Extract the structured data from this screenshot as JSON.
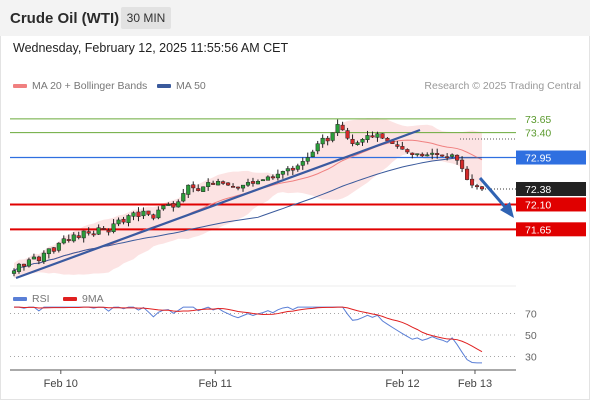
{
  "header": {
    "title": "Crude Oil (WTI)",
    "interval": "30 MIN",
    "datetime": "Wednesday, February 12, 2025 11:55:56 AM CET"
  },
  "legend": {
    "bollinger": "MA 20 + Bollinger Bands",
    "ma50": "MA 50",
    "credit": "Research © 2025 Trading Central",
    "rsi": "RSI",
    "rsi_ma": "9MA"
  },
  "colors": {
    "bollinger": "#f08080",
    "ma50": "#3a5a9c",
    "rsi": "#5a7fd6",
    "rsi_ma": "#e02020",
    "resistance": "#6aaa3a",
    "pivot": "#2f6fe0",
    "support": "#e00000",
    "last_price": "#222222"
  },
  "chart_data": {
    "type": "candlestick",
    "instrument": "Crude Oil (WTI)",
    "interval": "30 MIN",
    "y_range": [
      70.66,
      74.1
    ],
    "x_ticks": [
      "Feb 10",
      "Feb 11",
      "Feb 12",
      "Feb 13"
    ],
    "levels": [
      {
        "value": 73.65,
        "label": "73.65",
        "kind": "resistance"
      },
      {
        "value": 73.4,
        "label": "73.40",
        "kind": "resistance"
      },
      {
        "value": 72.95,
        "label": "72.95",
        "kind": "pivot"
      },
      {
        "value": 72.38,
        "label": "72.38",
        "kind": "last"
      },
      {
        "value": 72.1,
        "label": "72.10",
        "kind": "support"
      },
      {
        "value": 71.65,
        "label": "71.65",
        "kind": "support"
      }
    ],
    "close": [
      70.9,
      71.02,
      70.98,
      71.1,
      71.15,
      71.08,
      71.22,
      71.3,
      71.25,
      71.4,
      71.48,
      71.45,
      71.55,
      71.5,
      71.62,
      71.58,
      71.55,
      71.68,
      71.65,
      71.6,
      71.75,
      71.82,
      71.78,
      71.9,
      71.95,
      71.88,
      71.98,
      71.92,
      71.85,
      72.0,
      72.08,
      72.1,
      72.05,
      72.15,
      72.3,
      72.45,
      72.4,
      72.35,
      72.42,
      72.5,
      72.46,
      72.52,
      72.48,
      72.45,
      72.42,
      72.4,
      72.45,
      72.5,
      72.48,
      72.52,
      72.55,
      72.6,
      72.58,
      72.65,
      72.7,
      72.75,
      72.72,
      72.8,
      72.88,
      72.95,
      73.05,
      73.2,
      73.3,
      73.25,
      73.4,
      73.55,
      73.45,
      73.3,
      73.2,
      73.22,
      73.28,
      73.35,
      73.32,
      73.38,
      73.3,
      73.25,
      73.2,
      73.15,
      73.1,
      73.05,
      73.0,
      73.02,
      72.98,
      73.0,
      73.03,
      73.0,
      72.98,
      72.95,
      73.0,
      72.9,
      72.75,
      72.55,
      72.45,
      72.42,
      72.38
    ],
    "rsi": {
      "ticks": [
        70,
        50,
        30
      ],
      "range": [
        22,
        78
      ]
    }
  }
}
